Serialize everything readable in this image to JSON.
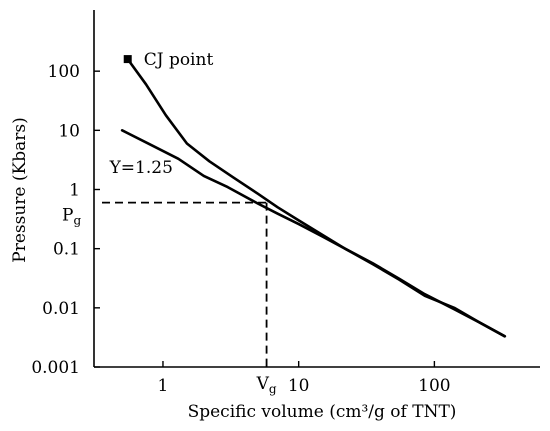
{
  "chart_data": {
    "type": "line",
    "xlabel": "Specific volume (cm³/g of TNT)",
    "ylabel": "Pressure (Kbars)",
    "x_scale": "log",
    "y_scale": "log",
    "xlim": [
      0.3,
      600
    ],
    "ylim": [
      0.001,
      1000
    ],
    "x_ticks": [
      {
        "value": 1,
        "label": "1"
      },
      {
        "value": 10,
        "label": "10"
      },
      {
        "value": 100,
        "label": "100"
      }
    ],
    "y_ticks": [
      {
        "value": 100,
        "label": "100"
      },
      {
        "value": 10,
        "label": "10"
      },
      {
        "value": 1,
        "label": "1"
      },
      {
        "value": 0.1,
        "label": "0.1"
      },
      {
        "value": 0.01,
        "label": "0.01"
      },
      {
        "value": 0.001,
        "label": "0.001"
      }
    ],
    "grid": false,
    "series": [
      {
        "x": [
          0.55,
          0.75,
          1.05,
          1.5,
          2.2,
          3.3,
          5,
          7,
          10,
          15,
          22,
          35,
          55,
          85,
          140,
          220,
          330
        ],
        "y": [
          160,
          60,
          18,
          6,
          3,
          1.6,
          0.85,
          0.5,
          0.3,
          0.17,
          0.1,
          0.055,
          0.03,
          0.016,
          0.01,
          0.0055,
          0.0033
        ]
      },
      {
        "x": [
          0.5,
          0.8,
          1.3,
          2,
          3,
          5,
          7,
          10,
          15,
          22,
          35,
          55,
          85,
          140,
          220,
          330
        ],
        "y": [
          10,
          5.8,
          3.3,
          1.7,
          1.1,
          0.58,
          0.39,
          0.26,
          0.16,
          0.1,
          0.057,
          0.031,
          0.017,
          0.0095,
          0.0055,
          0.0033
        ]
      }
    ],
    "cj_point": {
      "x": 0.55,
      "y": 160,
      "label": "CJ point"
    },
    "annotations": [
      {
        "text": "Y=1.25",
        "x": 0.65,
        "y": 2.4
      }
    ],
    "reference": {
      "x": 5.8,
      "y": 0.6,
      "x_label": "V",
      "x_label_sub": "g",
      "y_label": "P",
      "y_label_sub": "g"
    }
  }
}
